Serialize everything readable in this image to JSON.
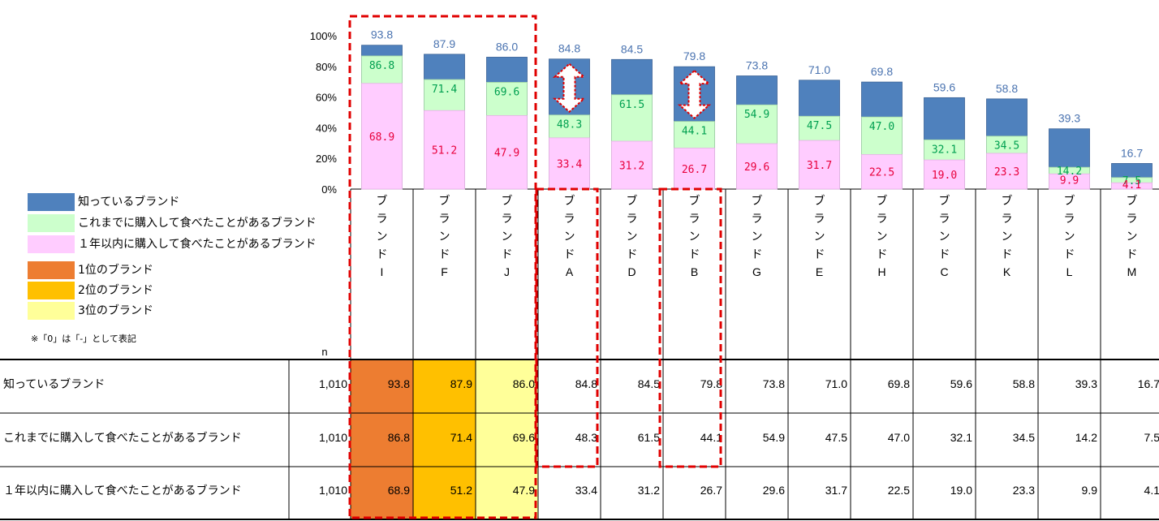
{
  "chart_data": {
    "type": "bar",
    "categories": [
      "ブランドI",
      "ブランドF",
      "ブランドJ",
      "ブランドA",
      "ブランドD",
      "ブランドB",
      "ブランドG",
      "ブランドE",
      "ブランドH",
      "ブランドC",
      "ブランドK",
      "ブランドL",
      "ブランドM"
    ],
    "category_labels": [
      [
        "ブ",
        "ラ",
        "ン",
        "ド",
        "I"
      ],
      [
        "ブ",
        "ラ",
        "ン",
        "ド",
        "F"
      ],
      [
        "ブ",
        "ラ",
        "ン",
        "ド",
        "J"
      ],
      [
        "ブ",
        "ラ",
        "ン",
        "ド",
        "A"
      ],
      [
        "ブ",
        "ラ",
        "ン",
        "ド",
        "D"
      ],
      [
        "ブ",
        "ラ",
        "ン",
        "ド",
        "B"
      ],
      [
        "ブ",
        "ラ",
        "ン",
        "ド",
        "G"
      ],
      [
        "ブ",
        "ラ",
        "ン",
        "ド",
        "E"
      ],
      [
        "ブ",
        "ラ",
        "ン",
        "ド",
        "H"
      ],
      [
        "ブ",
        "ラ",
        "ン",
        "ド",
        "C"
      ],
      [
        "ブ",
        "ラ",
        "ン",
        "ド",
        "K"
      ],
      [
        "ブ",
        "ラ",
        "ン",
        "ド",
        "L"
      ],
      [
        "ブ",
        "ラ",
        "ン",
        "ド",
        "M"
      ]
    ],
    "series": [
      {
        "name": "知っているブランド",
        "values": [
          93.8,
          87.9,
          86.0,
          84.8,
          84.5,
          79.8,
          73.8,
          71.0,
          69.8,
          59.6,
          58.8,
          39.3,
          16.7
        ]
      },
      {
        "name": "これまでに購入して食べたことがあるブランド",
        "values": [
          86.8,
          71.4,
          69.6,
          48.3,
          61.5,
          44.1,
          54.9,
          47.5,
          47.0,
          32.1,
          34.5,
          14.2,
          7.5
        ]
      },
      {
        "name": "１年以内に購入して食べたことがあるブランド",
        "values": [
          68.9,
          51.2,
          47.9,
          33.4,
          31.2,
          26.7,
          29.6,
          31.7,
          22.5,
          19.0,
          23.3,
          9.9,
          4.1
        ]
      }
    ],
    "yticks": [
      "0%",
      "20%",
      "40%",
      "60%",
      "80%",
      "100%"
    ],
    "ylim": [
      0,
      100
    ],
    "n_header": "n",
    "n_value": "1,010",
    "rank_labels": [
      "1位のブランド",
      "2位のブランド",
      "3位のブランド"
    ],
    "note": "※「0」は「-」として表記"
  },
  "colors": {
    "aware": "#4f81bd",
    "purchased": "#ccffcc",
    "year": "#ffccff",
    "aware_label": "#4a73b0",
    "purchased_label": "#00a050",
    "year_label": "#e8003c",
    "rank1": "#ed7d31",
    "rank2": "#ffc000",
    "rank3": "#ffff99",
    "highlight": "#e00000"
  }
}
